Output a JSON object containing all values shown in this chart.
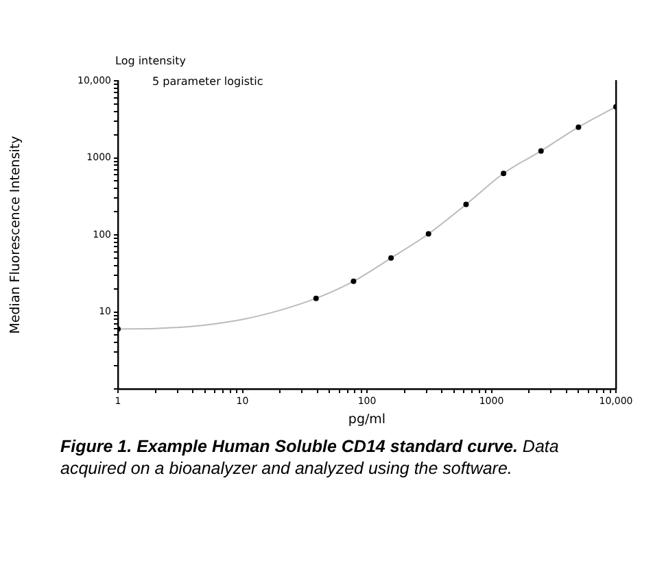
{
  "chart_data": {
    "type": "scatter",
    "xlabel": "pg/ml",
    "ylabel": "Median Fluorescence Intensity",
    "log": "xy",
    "grid": false,
    "legend": false,
    "marker": "circle",
    "xlim": [
      1,
      10000
    ],
    "ylim": [
      1,
      10000
    ],
    "xticks": [
      1,
      {
        "value": 2,
        "label": null
      },
      {
        "value": 3,
        "label": null
      },
      {
        "value": 4,
        "label": null
      },
      {
        "value": 5,
        "label": null
      },
      {
        "value": 6,
        "label": null
      },
      {
        "value": 7,
        "label": null
      },
      {
        "value": 8,
        "label": null
      },
      {
        "value": 9,
        "label": null
      },
      10,
      {
        "value": 20,
        "label": null
      },
      {
        "value": 30,
        "label": null
      },
      {
        "value": 40,
        "label": null
      },
      {
        "value": 50,
        "label": null
      },
      {
        "value": 60,
        "label": null
      },
      {
        "value": 70,
        "label": null
      },
      {
        "value": 80,
        "label": null
      },
      {
        "value": 90,
        "label": null
      },
      100,
      {
        "value": 200,
        "label": null
      },
      {
        "value": 300,
        "label": null
      },
      {
        "value": 400,
        "label": null
      },
      {
        "value": 500,
        "label": null
      },
      {
        "value": 600,
        "label": null
      },
      {
        "value": 700,
        "label": null
      },
      {
        "value": 800,
        "label": null
      },
      {
        "value": 900,
        "label": null
      },
      1000,
      {
        "value": 2000,
        "label": null
      },
      {
        "value": 3000,
        "label": null
      },
      {
        "value": 4000,
        "label": null
      },
      {
        "value": 5000,
        "label": null
      },
      {
        "value": 6000,
        "label": null
      },
      {
        "value": 7000,
        "label": null
      },
      {
        "value": 8000,
        "label": null
      },
      {
        "value": 9000,
        "label": null
      },
      {
        "value": 10000,
        "label": "10,000"
      }
    ],
    "yticks": [
      {
        "value": 1,
        "label": null
      },
      {
        "value": 2,
        "label": null
      },
      {
        "value": 3,
        "label": null
      },
      {
        "value": 4,
        "label": null
      },
      {
        "value": 5,
        "label": null
      },
      {
        "value": 6,
        "label": null
      },
      {
        "value": 7,
        "label": null
      },
      {
        "value": 8,
        "label": null
      },
      {
        "value": 9,
        "label": null
      },
      {
        "value": 10,
        "label": "10"
      },
      {
        "value": 20,
        "label": null
      },
      {
        "value": 30,
        "label": null
      },
      {
        "value": 40,
        "label": null
      },
      {
        "value": 50,
        "label": null
      },
      {
        "value": 60,
        "label": null
      },
      {
        "value": 70,
        "label": null
      },
      {
        "value": 80,
        "label": null
      },
      {
        "value": 90,
        "label": null
      },
      100,
      {
        "value": 200,
        "label": null
      },
      {
        "value": 300,
        "label": null
      },
      {
        "value": 400,
        "label": null
      },
      {
        "value": 500,
        "label": null
      },
      {
        "value": 600,
        "label": null
      },
      {
        "value": 700,
        "label": null
      },
      {
        "value": 800,
        "label": null
      },
      {
        "value": 900,
        "label": null
      },
      1000,
      {
        "value": 2000,
        "label": null
      },
      {
        "value": 3000,
        "label": null
      },
      {
        "value": 4000,
        "label": null
      },
      {
        "value": 5000,
        "label": null
      },
      {
        "value": 6000,
        "label": null
      },
      {
        "value": 7000,
        "label": null
      },
      {
        "value": 8000,
        "label": null
      },
      {
        "value": 9000,
        "label": null
      },
      {
        "value": 10000,
        "label": "10,000"
      }
    ],
    "series": [
      {
        "type": "line",
        "color": "#bbbbbb",
        "marker": "none",
        "x": [
          1,
          2,
          4,
          10,
          20,
          39,
          78,
          156,
          312,
          625,
          1250,
          2500,
          5000,
          10000
        ],
        "values": [
          6,
          6.1,
          6.5,
          8,
          10.5,
          15,
          25,
          50,
          103,
          248,
          627,
          1230,
          2500,
          4600
        ]
      },
      {
        "color": "#000000",
        "x": [
          1,
          39,
          78,
          156,
          312,
          625,
          1250,
          2500,
          5000,
          10000
        ],
        "values": [
          6,
          15,
          25,
          50,
          103,
          248,
          627,
          1230,
          2500,
          4600
        ]
      }
    ],
    "annotations": [
      "Log intensity",
      "5 parameter logistic",
      "Figure 1. Example Human Soluble CD14 standard curve.",
      "Data acquired on a bioanalyzer and analyzed using the software."
    ]
  }
}
